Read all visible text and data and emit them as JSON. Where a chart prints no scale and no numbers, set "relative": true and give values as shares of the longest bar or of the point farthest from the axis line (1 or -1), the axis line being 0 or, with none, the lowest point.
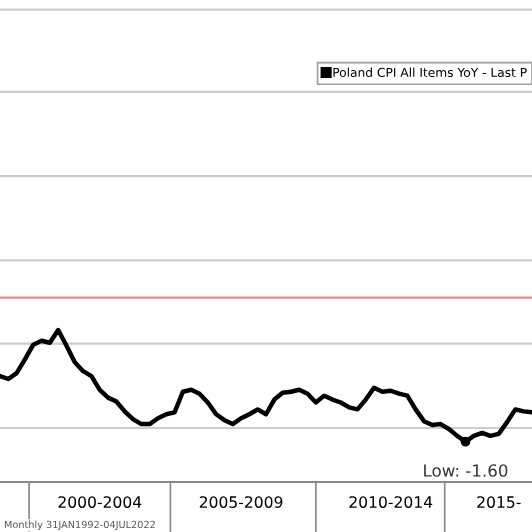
{
  "chart_data": {
    "type": "line",
    "relative": true,
    "categories": [
      null,
      null,
      null,
      null,
      null,
      null,
      null,
      null,
      null,
      null,
      null,
      null,
      "2000-2004",
      null,
      null,
      null,
      null,
      null,
      null,
      null,
      null,
      null,
      null,
      null,
      null,
      null,
      null,
      null,
      null,
      "2005-2009",
      null,
      null,
      null,
      null,
      null,
      null,
      null,
      null,
      null,
      null,
      null,
      null,
      null,
      null,
      null,
      null,
      null,
      "2010-2014",
      null,
      null,
      null,
      null,
      null,
      null,
      null,
      null,
      null,
      null,
      null,
      null,
      "2015-",
      null,
      null,
      null,
      null
    ],
    "series": [
      {
        "name": "Poland CPI All Items YoY - Last P",
        "color": "#000000",
        "values": [
          0.53,
          0.5,
          0.56,
          0.7,
          0.85,
          0.89,
          0.87,
          1.0,
          0.84,
          0.67,
          0.58,
          0.53,
          0.39,
          0.31,
          0.27,
          0.17,
          0.09,
          0.04,
          0.04,
          0.1,
          0.14,
          0.16,
          0.37,
          0.39,
          0.35,
          0.26,
          0.14,
          0.08,
          0.04,
          0.1,
          0.14,
          0.19,
          0.14,
          0.29,
          0.36,
          0.37,
          0.39,
          0.35,
          0.26,
          0.33,
          0.29,
          0.26,
          0.21,
          0.19,
          0.29,
          0.41,
          0.37,
          0.38,
          0.35,
          0.33,
          0.19,
          0.07,
          0.03,
          0.04,
          -0.01,
          -0.08,
          -0.14,
          -0.08,
          -0.05,
          -0.08,
          -0.06,
          0.06,
          0.19,
          0.17,
          0.16
        ]
      }
    ],
    "ref_lines": [
      {
        "axis": "y",
        "value": 0,
        "color": "#cccccc"
      },
      {
        "axis": "y",
        "value": 0.86,
        "color": "#cccccc"
      },
      {
        "axis": "y",
        "value": 1.33,
        "color": "#e08a8a"
      },
      {
        "axis": "y",
        "value": 1.71,
        "color": "#cccccc"
      },
      {
        "axis": "y",
        "value": 2.57,
        "color": "#cccccc"
      },
      {
        "axis": "y",
        "value": 3.43,
        "color": "#cccccc"
      },
      {
        "axis": "y",
        "value": 4.27,
        "color": "#cccccc"
      }
    ],
    "legend": "top right",
    "tick_labels": "x",
    "annotations": [
      {
        "text": "Low: -1.60",
        "y": -0.14
      },
      "Monthly 31JAN1992-04JUL2022"
    ]
  }
}
